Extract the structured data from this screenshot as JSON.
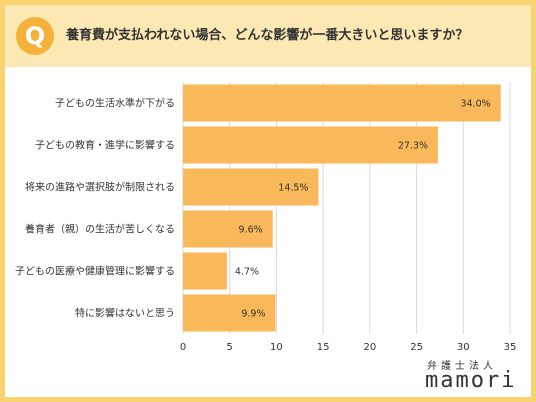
{
  "header": {
    "badge": "Q",
    "question": "養育費が支払われない場合、どんな影響が一番大きいと思いますか？"
  },
  "logo": {
    "subtitle": "弁護士法人",
    "name": "mamori"
  },
  "colors": {
    "bar": "#f9b95a",
    "header_bg": "#fbe8b3",
    "frame": "#f9d36f",
    "badge": "#f6b13b",
    "grid": "#d9d9d9"
  },
  "chart_data": {
    "type": "bar",
    "orientation": "horizontal",
    "title": "",
    "xlabel": "",
    "ylabel": "",
    "xlim": [
      0,
      35
    ],
    "xticks": [
      0,
      5,
      10,
      15,
      20,
      25,
      30,
      35
    ],
    "grid": true,
    "categories": [
      "子どもの生活水準が下がる",
      "子どもの教育・進学に影響する",
      "将来の進路や選択肢が制限される",
      "養育者（親）の生活が苦しくなる",
      "子どもの医療や健康管理に影響する",
      "特に影響はないと思う"
    ],
    "values": [
      34.0,
      27.3,
      14.5,
      9.6,
      4.7,
      9.9
    ],
    "value_labels": [
      "34.0%",
      "27.3%",
      "14.5%",
      "9.6%",
      "4.7%",
      "9.9%"
    ]
  }
}
